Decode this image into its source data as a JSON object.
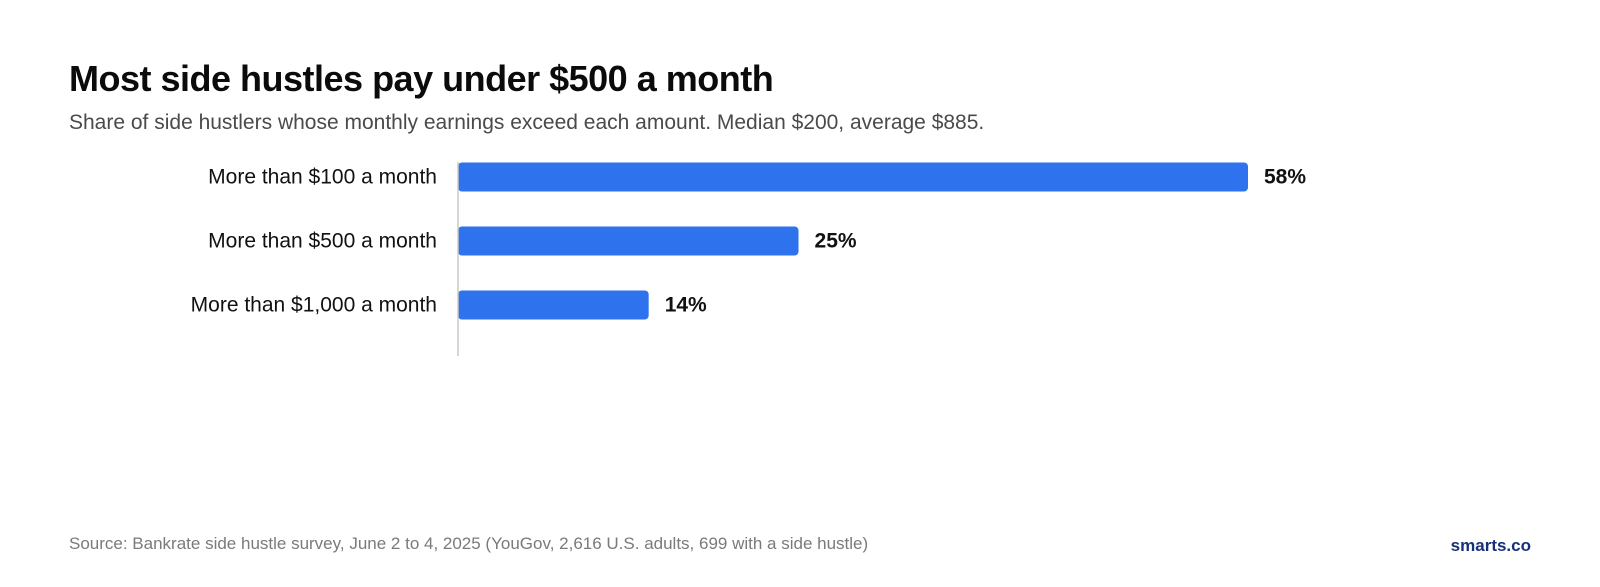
{
  "header": {
    "title": "Most side hustles pay under $500 a month",
    "subtitle": "Share of side hustlers whose monthly earnings exceed each amount. Median $200, average $885."
  },
  "footer": {
    "source": "Source: Bankrate side hustle survey, June 2 to 4, 2025 (YouGov, 2,616 U.S. adults, 699 with a side hustle)",
    "brand": "smarts.co"
  },
  "colors": {
    "bar": "#2f72ee",
    "axis": "#c8c8c8",
    "label": "#111111",
    "brand": "#17307a"
  },
  "chart_data": {
    "type": "bar",
    "orientation": "horizontal",
    "title": "Most side hustles pay under $500 a month",
    "subtitle": "Share of side hustlers whose monthly earnings exceed each amount. Median $200, average $885.",
    "categories": [
      "More than $100 a month",
      "More than $500 a month",
      "More than $1,000 a month"
    ],
    "values": [
      58,
      25,
      14
    ],
    "value_labels": [
      "58%",
      "25%",
      "14%"
    ],
    "unit": "%",
    "xlim": [
      0,
      58
    ],
    "grid": false,
    "legend": "none"
  }
}
